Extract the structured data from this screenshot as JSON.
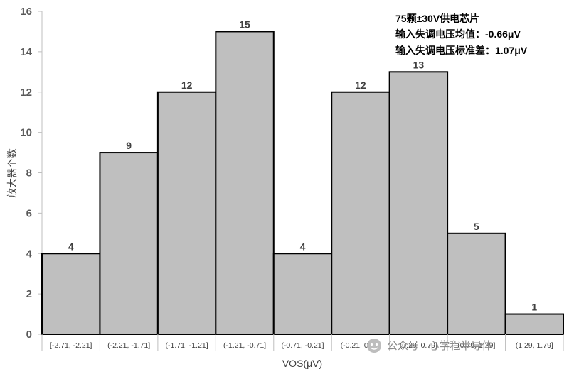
{
  "chart_data": {
    "type": "bar",
    "categories": [
      "[-2.71, -2.21]",
      "(-2.21, -1.71]",
      "(-1.71, -1.21]",
      "(-1.21, -0.71]",
      "(-0.71, -0.21]",
      "(-0.21, 0.29]",
      "(0.29, 0.79]",
      "(0.79, 1.29]",
      "(1.29, 1.79]"
    ],
    "values": [
      4,
      9,
      12,
      15,
      4,
      12,
      13,
      5,
      1
    ],
    "xlabel": "VOS(μV)",
    "ylabel": "放大器个数",
    "ylim": [
      0,
      16
    ],
    "yticks": [
      0,
      2,
      4,
      6,
      8,
      10,
      12,
      14,
      16
    ],
    "grid": false,
    "annotations": [
      "75颗±30V供电芯片",
      "输入失调电压均值：-0.66μV",
      "输入失调电压标准差：1.07μV"
    ],
    "colors": {
      "bar_fill": "#bfbfbf",
      "bar_stroke": "#000000"
    }
  },
  "watermark": {
    "icon": "wechat-icon",
    "text": "公众号 · 心学程半导体"
  }
}
